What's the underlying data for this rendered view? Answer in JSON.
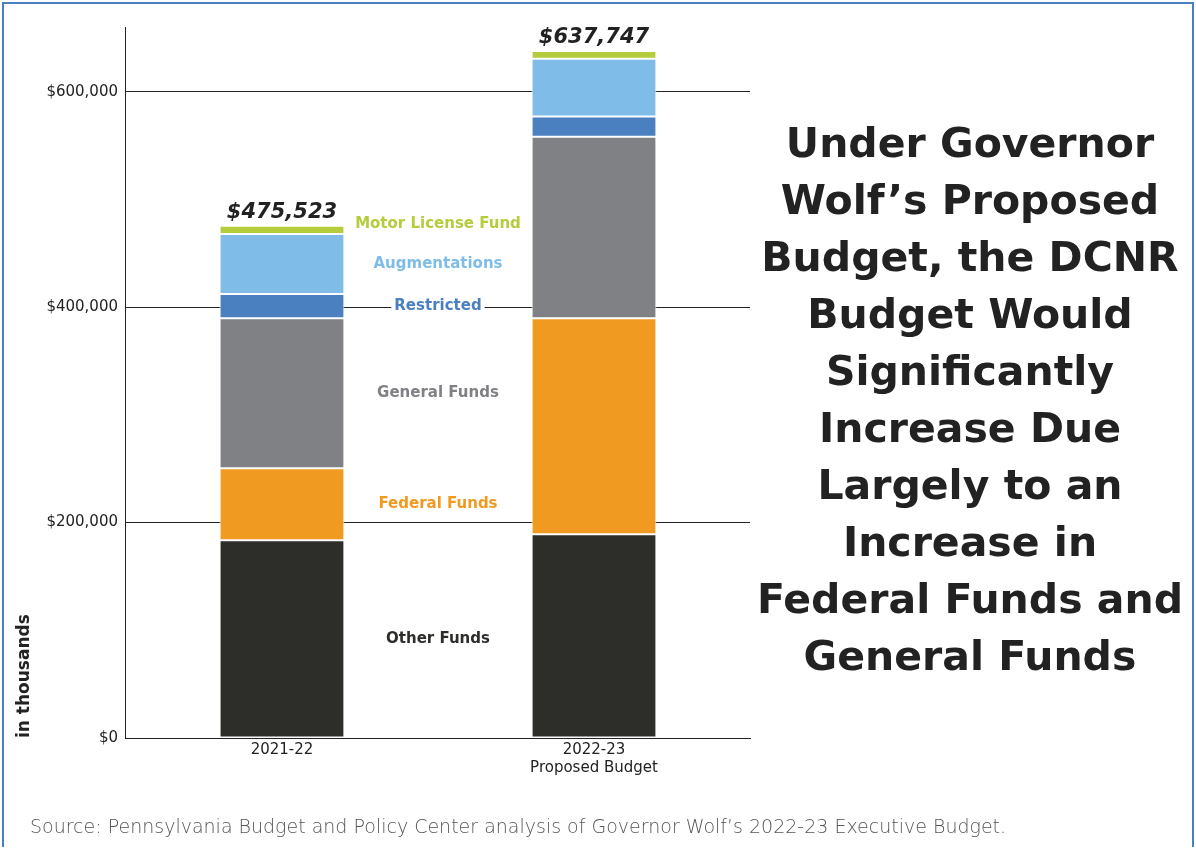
{
  "chart_data": {
    "type": "bar",
    "stacked": true,
    "title": "Under Governor Wolf’s Proposed Budget, the DCNR Budget Would Significantly Increase Due Largely to an Increase in Federal Funds and General Funds",
    "ylabel": "in thousands",
    "categories": [
      "2021-22",
      "2022-23\nProposed Budget"
    ],
    "series": [
      {
        "name": "Other Funds",
        "color": "#2d2d2a",
        "values": [
          183500,
          189200
        ]
      },
      {
        "name": "Federal Funds",
        "color": "#f09a22",
        "values": [
          66900,
          200400
        ]
      },
      {
        "name": "General Funds",
        "color": "#808184",
        "values": [
          139200,
          168500
        ]
      },
      {
        "name": "Restricted",
        "color": "#4a7fc0",
        "values": [
          22600,
          18900
        ]
      },
      {
        "name": "Augmentations",
        "color": "#7fbde8",
        "values": [
          55600,
          53600
        ]
      },
      {
        "name": "Motor License Fund",
        "color": "#b5cc3c",
        "values": [
          7723,
          7147
        ]
      }
    ],
    "totals": [
      "$475,523",
      "$637,747"
    ],
    "ylim": [
      0,
      660000
    ],
    "yticks": [
      {
        "value": 0,
        "label": "$0"
      },
      {
        "value": 200000,
        "label": "$200,000"
      },
      {
        "value": 400000,
        "label": "$400,000"
      },
      {
        "value": 600000,
        "label": "$600,000"
      }
    ],
    "grid": "y",
    "annotations": [
      "Source: Pennsylvania Budget and Policy Center analysis of Governor Wolf’s 2022-23 Executive Budget."
    ]
  }
}
